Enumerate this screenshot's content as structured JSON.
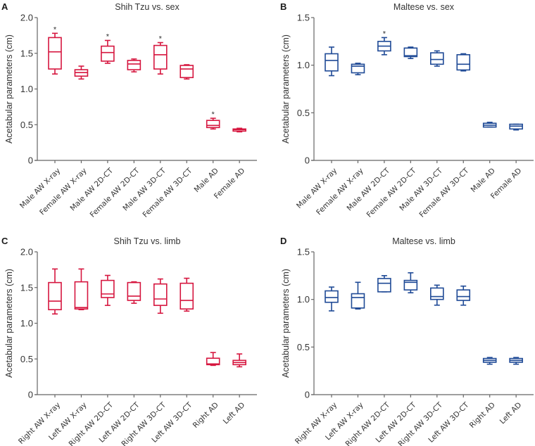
{
  "colors": {
    "shih_tzu": "#d6163f",
    "maltese": "#1f4a96"
  },
  "chart_data": [
    {
      "panel": "A",
      "type": "boxplot",
      "title": "Shih Tzu vs. sex",
      "xlabel": "",
      "ylabel": "Acetabular parameters (cm)",
      "ylim": [
        0,
        2.0
      ],
      "yticks": [
        0,
        0.5,
        1.0,
        1.5,
        2.0
      ],
      "ytick_labels": [
        "0",
        "0.5",
        "1.0",
        "1.5",
        "2.0"
      ],
      "color_key": "shih_tzu",
      "categories": [
        "Male AW X-ray",
        "Female AW X-ray",
        "Male AW 2D-CT",
        "Female AW 2D-CT",
        "Male AW 3D-CT",
        "Female AW 3D-CT",
        "Male AD",
        "Female AD"
      ],
      "boxes": [
        {
          "min": 1.21,
          "q1": 1.28,
          "median": 1.52,
          "q3": 1.72,
          "max": 1.78,
          "star": true
        },
        {
          "min": 1.14,
          "q1": 1.18,
          "median": 1.23,
          "q3": 1.27,
          "max": 1.32,
          "star": false
        },
        {
          "min": 1.36,
          "q1": 1.39,
          "median": 1.51,
          "q3": 1.6,
          "max": 1.68,
          "star": true
        },
        {
          "min": 1.24,
          "q1": 1.27,
          "median": 1.35,
          "q3": 1.4,
          "max": 1.42,
          "star": false
        },
        {
          "min": 1.21,
          "q1": 1.28,
          "median": 1.48,
          "q3": 1.61,
          "max": 1.65,
          "star": true
        },
        {
          "min": 1.14,
          "q1": 1.16,
          "median": 1.28,
          "q3": 1.33,
          "max": 1.34,
          "star": false
        },
        {
          "min": 0.44,
          "q1": 0.46,
          "median": 0.49,
          "q3": 0.56,
          "max": 0.59,
          "star": true
        },
        {
          "min": 0.4,
          "q1": 0.41,
          "median": 0.43,
          "q3": 0.44,
          "max": 0.45,
          "star": false
        }
      ]
    },
    {
      "panel": "B",
      "type": "boxplot",
      "title": "Maltese vs. sex",
      "xlabel": "",
      "ylabel": "Acetabular parameters (cm)",
      "ylim": [
        0,
        1.5
      ],
      "yticks": [
        0,
        0.5,
        1.0,
        1.5
      ],
      "ytick_labels": [
        "0",
        "0.5",
        "1.0",
        "1.5"
      ],
      "color_key": "maltese",
      "categories": [
        "Male AW X-ray",
        "Female AW X-ray",
        "Male AW 2D-CT",
        "Female AW 2D-CT",
        "Male AW 3D-CT",
        "Female AW 3D-CT",
        "Male AD",
        "Female AD"
      ],
      "boxes": [
        {
          "min": 0.89,
          "q1": 0.94,
          "median": 1.05,
          "q3": 1.12,
          "max": 1.19,
          "star": false
        },
        {
          "min": 0.9,
          "q1": 0.92,
          "median": 0.99,
          "q3": 1.01,
          "max": 1.02,
          "star": false
        },
        {
          "min": 1.11,
          "q1": 1.15,
          "median": 1.2,
          "q3": 1.25,
          "max": 1.29,
          "star": true
        },
        {
          "min": 1.07,
          "q1": 1.09,
          "median": 1.1,
          "q3": 1.18,
          "max": 1.19,
          "star": false
        },
        {
          "min": 0.99,
          "q1": 1.01,
          "median": 1.06,
          "q3": 1.13,
          "max": 1.15,
          "star": false
        },
        {
          "min": 0.94,
          "q1": 0.95,
          "median": 1.01,
          "q3": 1.11,
          "max": 1.12,
          "star": false
        },
        {
          "min": 0.35,
          "q1": 0.35,
          "median": 0.37,
          "q3": 0.39,
          "max": 0.4,
          "star": false
        },
        {
          "min": 0.32,
          "q1": 0.33,
          "median": 0.36,
          "q3": 0.38,
          "max": 0.38,
          "star": false
        }
      ]
    },
    {
      "panel": "C",
      "type": "boxplot",
      "title": "Shih Tzu vs. limb",
      "xlabel": "",
      "ylabel": "Acetabular parameters (cm)",
      "ylim": [
        0,
        2.0
      ],
      "yticks": [
        0,
        0.5,
        1.0,
        1.5,
        2.0
      ],
      "ytick_labels": [
        "0",
        "0.5",
        "1.0",
        "1.5",
        "2.0"
      ],
      "color_key": "shih_tzu",
      "categories": [
        "Right AW X-ray",
        "Left AW X-ray",
        "Right AW 2D-CT",
        "Left AW 2D-CT",
        "Right AW 3D-CT",
        "Left AW 3D-CT",
        "Right AD",
        "Left AD"
      ],
      "boxes": [
        {
          "min": 1.13,
          "q1": 1.19,
          "median": 1.31,
          "q3": 1.57,
          "max": 1.76,
          "star": false
        },
        {
          "min": 1.19,
          "q1": 1.2,
          "median": 1.22,
          "q3": 1.58,
          "max": 1.76,
          "star": false
        },
        {
          "min": 1.25,
          "q1": 1.36,
          "median": 1.41,
          "q3": 1.6,
          "max": 1.67,
          "star": false
        },
        {
          "min": 1.28,
          "q1": 1.32,
          "median": 1.38,
          "q3": 1.57,
          "max": 1.58,
          "star": false
        },
        {
          "min": 1.14,
          "q1": 1.25,
          "median": 1.34,
          "q3": 1.55,
          "max": 1.62,
          "star": false
        },
        {
          "min": 1.17,
          "q1": 1.2,
          "median": 1.32,
          "q3": 1.56,
          "max": 1.63,
          "star": false
        },
        {
          "min": 0.41,
          "q1": 0.42,
          "median": 0.43,
          "q3": 0.51,
          "max": 0.59,
          "star": false
        },
        {
          "min": 0.39,
          "q1": 0.42,
          "median": 0.45,
          "q3": 0.48,
          "max": 0.57,
          "star": false
        }
      ]
    },
    {
      "panel": "D",
      "type": "boxplot",
      "title": "Maltese vs. limb",
      "xlabel": "",
      "ylabel": "Acetabular parameters (cm)",
      "ylim": [
        0,
        1.5
      ],
      "yticks": [
        0,
        0.5,
        1.0,
        1.5
      ],
      "ytick_labels": [
        "0",
        "0.5",
        "1.0",
        "1.5"
      ],
      "color_key": "maltese",
      "categories": [
        "Right AW X-ray",
        "Left AW X-ray",
        "Right AW 2D-CT",
        "Left AW 2D-CT",
        "Right AW 3D-CT",
        "Left AW 3D-CT",
        "Right AD",
        "Left AD"
      ],
      "boxes": [
        {
          "min": 0.88,
          "q1": 0.97,
          "median": 1.02,
          "q3": 1.09,
          "max": 1.13,
          "star": false
        },
        {
          "min": 0.9,
          "q1": 0.91,
          "median": 1.02,
          "q3": 1.06,
          "max": 1.18,
          "star": false
        },
        {
          "min": 1.08,
          "q1": 1.08,
          "median": 1.17,
          "q3": 1.22,
          "max": 1.25,
          "star": false
        },
        {
          "min": 1.07,
          "q1": 1.1,
          "median": 1.18,
          "q3": 1.2,
          "max": 1.28,
          "star": false
        },
        {
          "min": 0.94,
          "q1": 1.0,
          "median": 1.03,
          "q3": 1.12,
          "max": 1.15,
          "star": false
        },
        {
          "min": 0.94,
          "q1": 0.99,
          "median": 1.03,
          "q3": 1.1,
          "max": 1.14,
          "star": false
        },
        {
          "min": 0.32,
          "q1": 0.34,
          "median": 0.36,
          "q3": 0.38,
          "max": 0.39,
          "star": false
        },
        {
          "min": 0.32,
          "q1": 0.34,
          "median": 0.36,
          "q3": 0.38,
          "max": 0.39,
          "star": false
        }
      ]
    }
  ],
  "star_symbol": "*"
}
